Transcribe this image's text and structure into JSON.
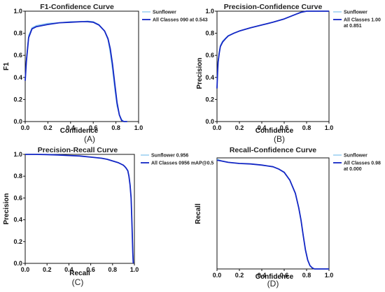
{
  "chart_data": [
    {
      "panel_tag": "(A)",
      "type": "line",
      "title": "F1-Confidence Curve",
      "xlabel": "Confidence",
      "ylabel": "F1",
      "xlim": [
        0,
        1
      ],
      "ylim": [
        0,
        1
      ],
      "xticks": [
        "0.0",
        "0.2",
        "0.4",
        "0.6",
        "0.8",
        "1.0"
      ],
      "yticks": [
        "0.0",
        "0.2",
        "0.4",
        "0.6",
        "0.8",
        "1.0"
      ],
      "grid": false,
      "legend_position": "top-right",
      "series": [
        {
          "name": "Sunflower",
          "color": "#87c5ee",
          "x": [
            0.0,
            0.01,
            0.03,
            0.06,
            0.1,
            0.2,
            0.3,
            0.4,
            0.5,
            0.55,
            0.6,
            0.65,
            0.7,
            0.73,
            0.75,
            0.77,
            0.79,
            0.81,
            0.83,
            0.85,
            0.87,
            0.9
          ],
          "y": [
            0.38,
            0.55,
            0.78,
            0.85,
            0.87,
            0.89,
            0.895,
            0.905,
            0.905,
            0.91,
            0.905,
            0.88,
            0.82,
            0.74,
            0.62,
            0.47,
            0.29,
            0.14,
            0.06,
            0.02,
            0.0,
            0.0
          ]
        },
        {
          "name": "All Classes 090 at 0.543",
          "color": "#1226c4",
          "x": [
            0.0,
            0.01,
            0.03,
            0.06,
            0.1,
            0.2,
            0.3,
            0.4,
            0.5,
            0.55,
            0.6,
            0.65,
            0.7,
            0.73,
            0.75,
            0.77,
            0.79,
            0.81,
            0.83,
            0.85,
            0.87,
            0.9
          ],
          "y": [
            0.37,
            0.54,
            0.76,
            0.84,
            0.86,
            0.88,
            0.895,
            0.9,
            0.905,
            0.905,
            0.9,
            0.875,
            0.82,
            0.75,
            0.66,
            0.52,
            0.34,
            0.17,
            0.06,
            0.01,
            0.0,
            0.0
          ]
        }
      ]
    },
    {
      "panel_tag": "(B)",
      "type": "line",
      "title": "Precision-Confidence Curve",
      "xlabel": "Confidence",
      "ylabel": "Precision",
      "xlim": [
        0,
        1
      ],
      "ylim": [
        0,
        1
      ],
      "xticks": [
        "0.0",
        "0.2",
        "0.4",
        "0.6",
        "0.8",
        "1.0"
      ],
      "yticks": [
        "0.0",
        "0.2",
        "0.4",
        "0.6",
        "0.8",
        "1.0"
      ],
      "grid": false,
      "legend_position": "top-right",
      "series": [
        {
          "name": "Sunflower",
          "color": "#87c5ee",
          "x": [
            0.0,
            0.005,
            0.01,
            0.02,
            0.03,
            0.05,
            0.08,
            0.1,
            0.15,
            0.2,
            0.3,
            0.4,
            0.5,
            0.6,
            0.7,
            0.75,
            0.8,
            0.85,
            0.9,
            0.95,
            1.0
          ],
          "y": [
            0.31,
            0.45,
            0.55,
            0.63,
            0.69,
            0.73,
            0.76,
            0.78,
            0.8,
            0.82,
            0.85,
            0.875,
            0.9,
            0.93,
            0.97,
            0.99,
            1.0,
            1.0,
            1.0,
            1.0,
            1.0
          ]
        },
        {
          "name": "All Classes 1.00 at 0.851",
          "color": "#1226c4",
          "x": [
            0.0,
            0.005,
            0.01,
            0.02,
            0.03,
            0.05,
            0.08,
            0.1,
            0.15,
            0.2,
            0.3,
            0.4,
            0.5,
            0.6,
            0.7,
            0.75,
            0.8,
            0.85,
            0.9,
            0.95,
            1.0
          ],
          "y": [
            0.3,
            0.44,
            0.54,
            0.62,
            0.68,
            0.72,
            0.755,
            0.775,
            0.8,
            0.82,
            0.85,
            0.875,
            0.9,
            0.93,
            0.97,
            0.99,
            1.0,
            1.0,
            1.0,
            1.0,
            1.0
          ]
        }
      ]
    },
    {
      "panel_tag": "(C)",
      "type": "line",
      "title": "Precision-Recall Curve",
      "xlabel": "Recall",
      "ylabel": "Precision",
      "xlim": [
        0,
        1
      ],
      "ylim": [
        0,
        1
      ],
      "xticks": [
        "0.0",
        "0.2",
        "0.4",
        "0.6",
        "0.8",
        "1.0"
      ],
      "yticks": [
        "0.0",
        "0.2",
        "0.4",
        "0.6",
        "0.8",
        "1.0"
      ],
      "grid": false,
      "legend_position": "top-right",
      "series": [
        {
          "name": "Sunflower 0.956",
          "color": "#87c5ee",
          "x": [
            0.0,
            0.1,
            0.2,
            0.3,
            0.4,
            0.5,
            0.6,
            0.7,
            0.75,
            0.8,
            0.85,
            0.88,
            0.9,
            0.92,
            0.94,
            0.95,
            0.96,
            0.97,
            0.975,
            0.98,
            0.985,
            0.99
          ],
          "y": [
            1.0,
            1.0,
            0.998,
            0.995,
            0.99,
            0.985,
            0.975,
            0.965,
            0.955,
            0.94,
            0.925,
            0.91,
            0.9,
            0.88,
            0.85,
            0.8,
            0.72,
            0.6,
            0.45,
            0.28,
            0.1,
            0.0
          ]
        },
        {
          "name": "All Classes 0956 mAP@0.5",
          "color": "#1226c4",
          "x": [
            0.0,
            0.1,
            0.2,
            0.3,
            0.4,
            0.5,
            0.6,
            0.7,
            0.75,
            0.8,
            0.85,
            0.88,
            0.9,
            0.92,
            0.94,
            0.95,
            0.96,
            0.97,
            0.975,
            0.98,
            0.985,
            0.99
          ],
          "y": [
            1.0,
            1.0,
            0.998,
            0.995,
            0.99,
            0.985,
            0.975,
            0.965,
            0.955,
            0.94,
            0.925,
            0.91,
            0.9,
            0.88,
            0.85,
            0.8,
            0.72,
            0.6,
            0.45,
            0.28,
            0.1,
            0.0
          ]
        }
      ]
    },
    {
      "panel_tag": "(D)",
      "type": "line",
      "title": "Recall-Confidence Curve",
      "xlabel": "Confidence",
      "ylabel": "Recall",
      "xlim": [
        0,
        1
      ],
      "ylim": [
        0,
        1
      ],
      "xticks": [
        "0.0",
        "0.2",
        "0.4",
        "0.6",
        "0.8",
        "1.0"
      ],
      "yticks": null,
      "grid": false,
      "legend_position": "top-right",
      "series": [
        {
          "name": "Sunflower",
          "color": "#87c5ee",
          "x": [
            0.0,
            0.05,
            0.1,
            0.2,
            0.3,
            0.4,
            0.5,
            0.55,
            0.6,
            0.65,
            0.7,
            0.73,
            0.75,
            0.77,
            0.79,
            0.81,
            0.83,
            0.85,
            0.87,
            0.9,
            1.0
          ],
          "y": [
            0.99,
            0.97,
            0.96,
            0.95,
            0.945,
            0.935,
            0.92,
            0.9,
            0.87,
            0.8,
            0.68,
            0.55,
            0.44,
            0.3,
            0.17,
            0.08,
            0.03,
            0.01,
            0.0,
            0.0,
            0.0
          ]
        },
        {
          "name": "All Classes 0.98 at 0.000",
          "color": "#1226c4",
          "x": [
            0.0,
            0.05,
            0.1,
            0.2,
            0.3,
            0.4,
            0.5,
            0.55,
            0.6,
            0.65,
            0.7,
            0.73,
            0.75,
            0.77,
            0.79,
            0.81,
            0.83,
            0.85,
            0.87,
            0.9,
            1.0
          ],
          "y": [
            0.98,
            0.97,
            0.96,
            0.95,
            0.945,
            0.935,
            0.92,
            0.9,
            0.87,
            0.8,
            0.68,
            0.55,
            0.44,
            0.3,
            0.17,
            0.08,
            0.03,
            0.01,
            0.0,
            0.0,
            0.0
          ]
        }
      ]
    }
  ]
}
